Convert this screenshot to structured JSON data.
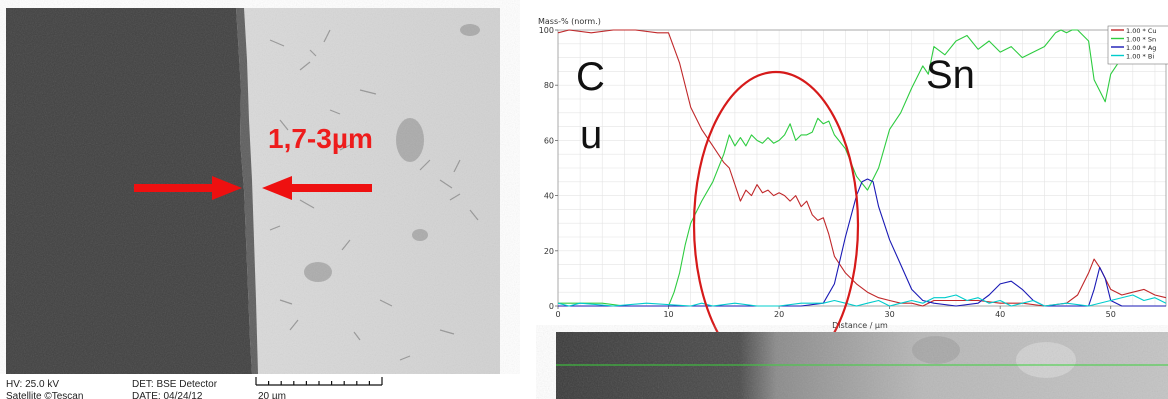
{
  "sem": {
    "thickness_label": "1,7-3µm",
    "hv": "HV: 25.0 kV",
    "detector": "DET: BSE Detector",
    "source": "Satellite ©Tescan",
    "date": "DATE: 04/24/12",
    "scale": "20 µm"
  },
  "overlay": {
    "cu_label_c": "C",
    "cu_label_u": "u",
    "sn_label": "Sn"
  },
  "chart_data": {
    "type": "line",
    "ylabel": "Mass-% (norm.)",
    "xlabel": "Distance / µm",
    "xlim": [
      0,
      55
    ],
    "ylim": [
      0,
      100
    ],
    "xticks": [
      0,
      10,
      20,
      30,
      40,
      50
    ],
    "yticks": [
      0,
      20,
      40,
      60,
      80,
      100
    ],
    "grid": true,
    "legend_position": "top-right",
    "series": [
      {
        "name": "1.00 * Cu",
        "color": "#c0282a",
        "x": [
          0,
          1,
          3,
          5,
          7,
          9,
          10,
          11,
          12,
          13,
          14,
          15,
          15.5,
          16,
          16.5,
          17,
          17.5,
          18,
          18.5,
          19,
          19.5,
          20,
          20.5,
          21,
          21.5,
          22,
          22.5,
          23,
          23.5,
          24,
          24.5,
          25,
          26,
          27,
          28,
          29,
          30,
          31,
          32,
          33,
          34,
          36,
          38,
          40,
          42,
          44,
          46,
          47,
          48,
          48.5,
          49,
          49.5,
          50,
          51,
          52,
          53,
          54,
          55
        ],
        "y": [
          99,
          100,
          99,
          100,
          100,
          99,
          99,
          88,
          72,
          64,
          58,
          52,
          50,
          44,
          38,
          42,
          40,
          44,
          41,
          42,
          40,
          41,
          40,
          38,
          40,
          36,
          38,
          33,
          31,
          32,
          26,
          18,
          12,
          8,
          5,
          3,
          2,
          1,
          1,
          0,
          2,
          2,
          2,
          1,
          1,
          0,
          1,
          4,
          12,
          17,
          14,
          10,
          6,
          4,
          5,
          6,
          4,
          3
        ]
      },
      {
        "name": "1.00 * Sn",
        "color": "#2ecc40",
        "x": [
          0,
          2,
          4,
          6,
          8,
          10,
          10.5,
          11,
          11.5,
          12,
          13,
          14,
          15,
          15.5,
          16,
          16.5,
          17,
          17.5,
          18,
          18.5,
          19,
          19.5,
          20,
          20.5,
          21,
          21.5,
          22,
          22.5,
          23,
          23.5,
          24,
          24.5,
          25,
          26,
          27,
          28,
          29,
          30,
          31,
          32,
          33,
          33.5,
          34,
          35,
          36,
          37,
          38,
          39,
          40,
          41,
          42,
          43,
          44,
          45,
          45.5,
          46,
          46.5,
          47,
          48,
          48.5,
          49,
          49.5,
          50,
          51,
          52,
          53,
          54,
          55
        ],
        "y": [
          1,
          1,
          1,
          0,
          0,
          0,
          5,
          12,
          22,
          30,
          38,
          45,
          55,
          62,
          58,
          61,
          58,
          62,
          60,
          59,
          61,
          59,
          60,
          62,
          66,
          60,
          62,
          62,
          63,
          68,
          66,
          67,
          62,
          57,
          47,
          42,
          50,
          64,
          70,
          79,
          87,
          84,
          94,
          91,
          96,
          98,
          93,
          96,
          92,
          94,
          90,
          92,
          94,
          99,
          100,
          99,
          100,
          100,
          96,
          82,
          78,
          74,
          84,
          90,
          94,
          88,
          92,
          90
        ]
      },
      {
        "name": "1.00 * Ag",
        "color": "#1a1ab5",
        "x": [
          0,
          10,
          20,
          22,
          24,
          25,
          26,
          27,
          27.5,
          28,
          28.5,
          29,
          30,
          31,
          32,
          33,
          34,
          36,
          38,
          39,
          40,
          41,
          42,
          43,
          44,
          46,
          48,
          48.5,
          49,
          49.5,
          50,
          51,
          52,
          53,
          54,
          55
        ],
        "y": [
          0,
          0,
          0,
          0,
          1,
          8,
          25,
          40,
          45,
          46,
          45,
          36,
          24,
          15,
          6,
          2,
          1,
          0,
          1,
          4,
          8,
          9,
          6,
          2,
          0,
          0,
          0,
          6,
          14,
          10,
          2,
          0,
          0,
          0,
          0,
          0
        ]
      },
      {
        "name": "1.00 * Bi",
        "color": "#00cccc",
        "x": [
          0,
          1,
          2,
          5,
          8,
          12,
          13,
          14,
          16,
          18,
          20,
          22,
          24,
          25,
          26,
          27,
          28,
          29,
          30,
          31,
          32,
          33,
          34,
          35,
          36,
          37,
          38,
          39,
          40,
          41,
          42,
          43,
          44,
          46,
          48,
          50,
          52,
          53,
          54,
          55
        ],
        "y": [
          1,
          0,
          1,
          0,
          1,
          0,
          1,
          0,
          1,
          0,
          0,
          1,
          1,
          2,
          1,
          0,
          1,
          2,
          0,
          1,
          2,
          1,
          3,
          3,
          4,
          2,
          3,
          1,
          2,
          0,
          1,
          2,
          0,
          1,
          0,
          2,
          4,
          2,
          3,
          1
        ]
      }
    ]
  }
}
